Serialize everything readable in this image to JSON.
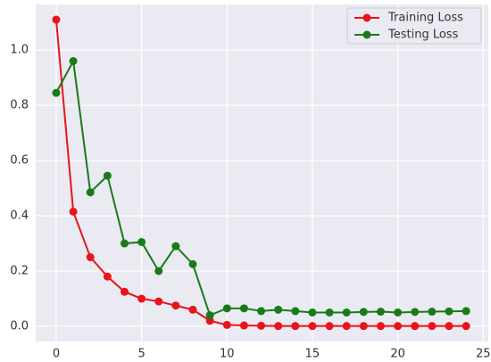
{
  "chart_data": {
    "type": "line",
    "x": [
      0,
      1,
      2,
      3,
      4,
      5,
      6,
      7,
      8,
      9,
      10,
      11,
      12,
      13,
      14,
      15,
      16,
      17,
      18,
      19,
      20,
      21,
      22,
      23,
      24
    ],
    "series": [
      {
        "name": "Training Loss",
        "color": "#e8141c",
        "values": [
          1.11,
          0.415,
          0.25,
          0.18,
          0.125,
          0.1,
          0.09,
          0.075,
          0.06,
          0.02,
          0.005,
          0.003,
          0.002,
          0.001,
          0.001,
          0.001,
          0.001,
          0.001,
          0.001,
          0.001,
          0.001,
          0.001,
          0.001,
          0.001,
          0.001
        ]
      },
      {
        "name": "Testing Loss",
        "color": "#1a7a1a",
        "values": [
          0.845,
          0.96,
          0.485,
          0.545,
          0.3,
          0.305,
          0.2,
          0.29,
          0.225,
          0.04,
          0.065,
          0.065,
          0.055,
          0.06,
          0.055,
          0.05,
          0.05,
          0.05,
          0.052,
          0.053,
          0.05,
          0.052,
          0.053,
          0.054,
          0.055
        ]
      }
    ],
    "xlim": [
      -1.2,
      25.3
    ],
    "ylim": [
      -0.055,
      1.165
    ],
    "xticks": [
      0,
      5,
      10,
      15,
      20,
      25
    ],
    "yticks": [
      {
        "value": 0,
        "label": "0.0"
      },
      0.2,
      0.4,
      0.6,
      0.8,
      {
        "value": 1,
        "label": "1.0"
      }
    ],
    "grid": true,
    "legend": "upper right"
  }
}
